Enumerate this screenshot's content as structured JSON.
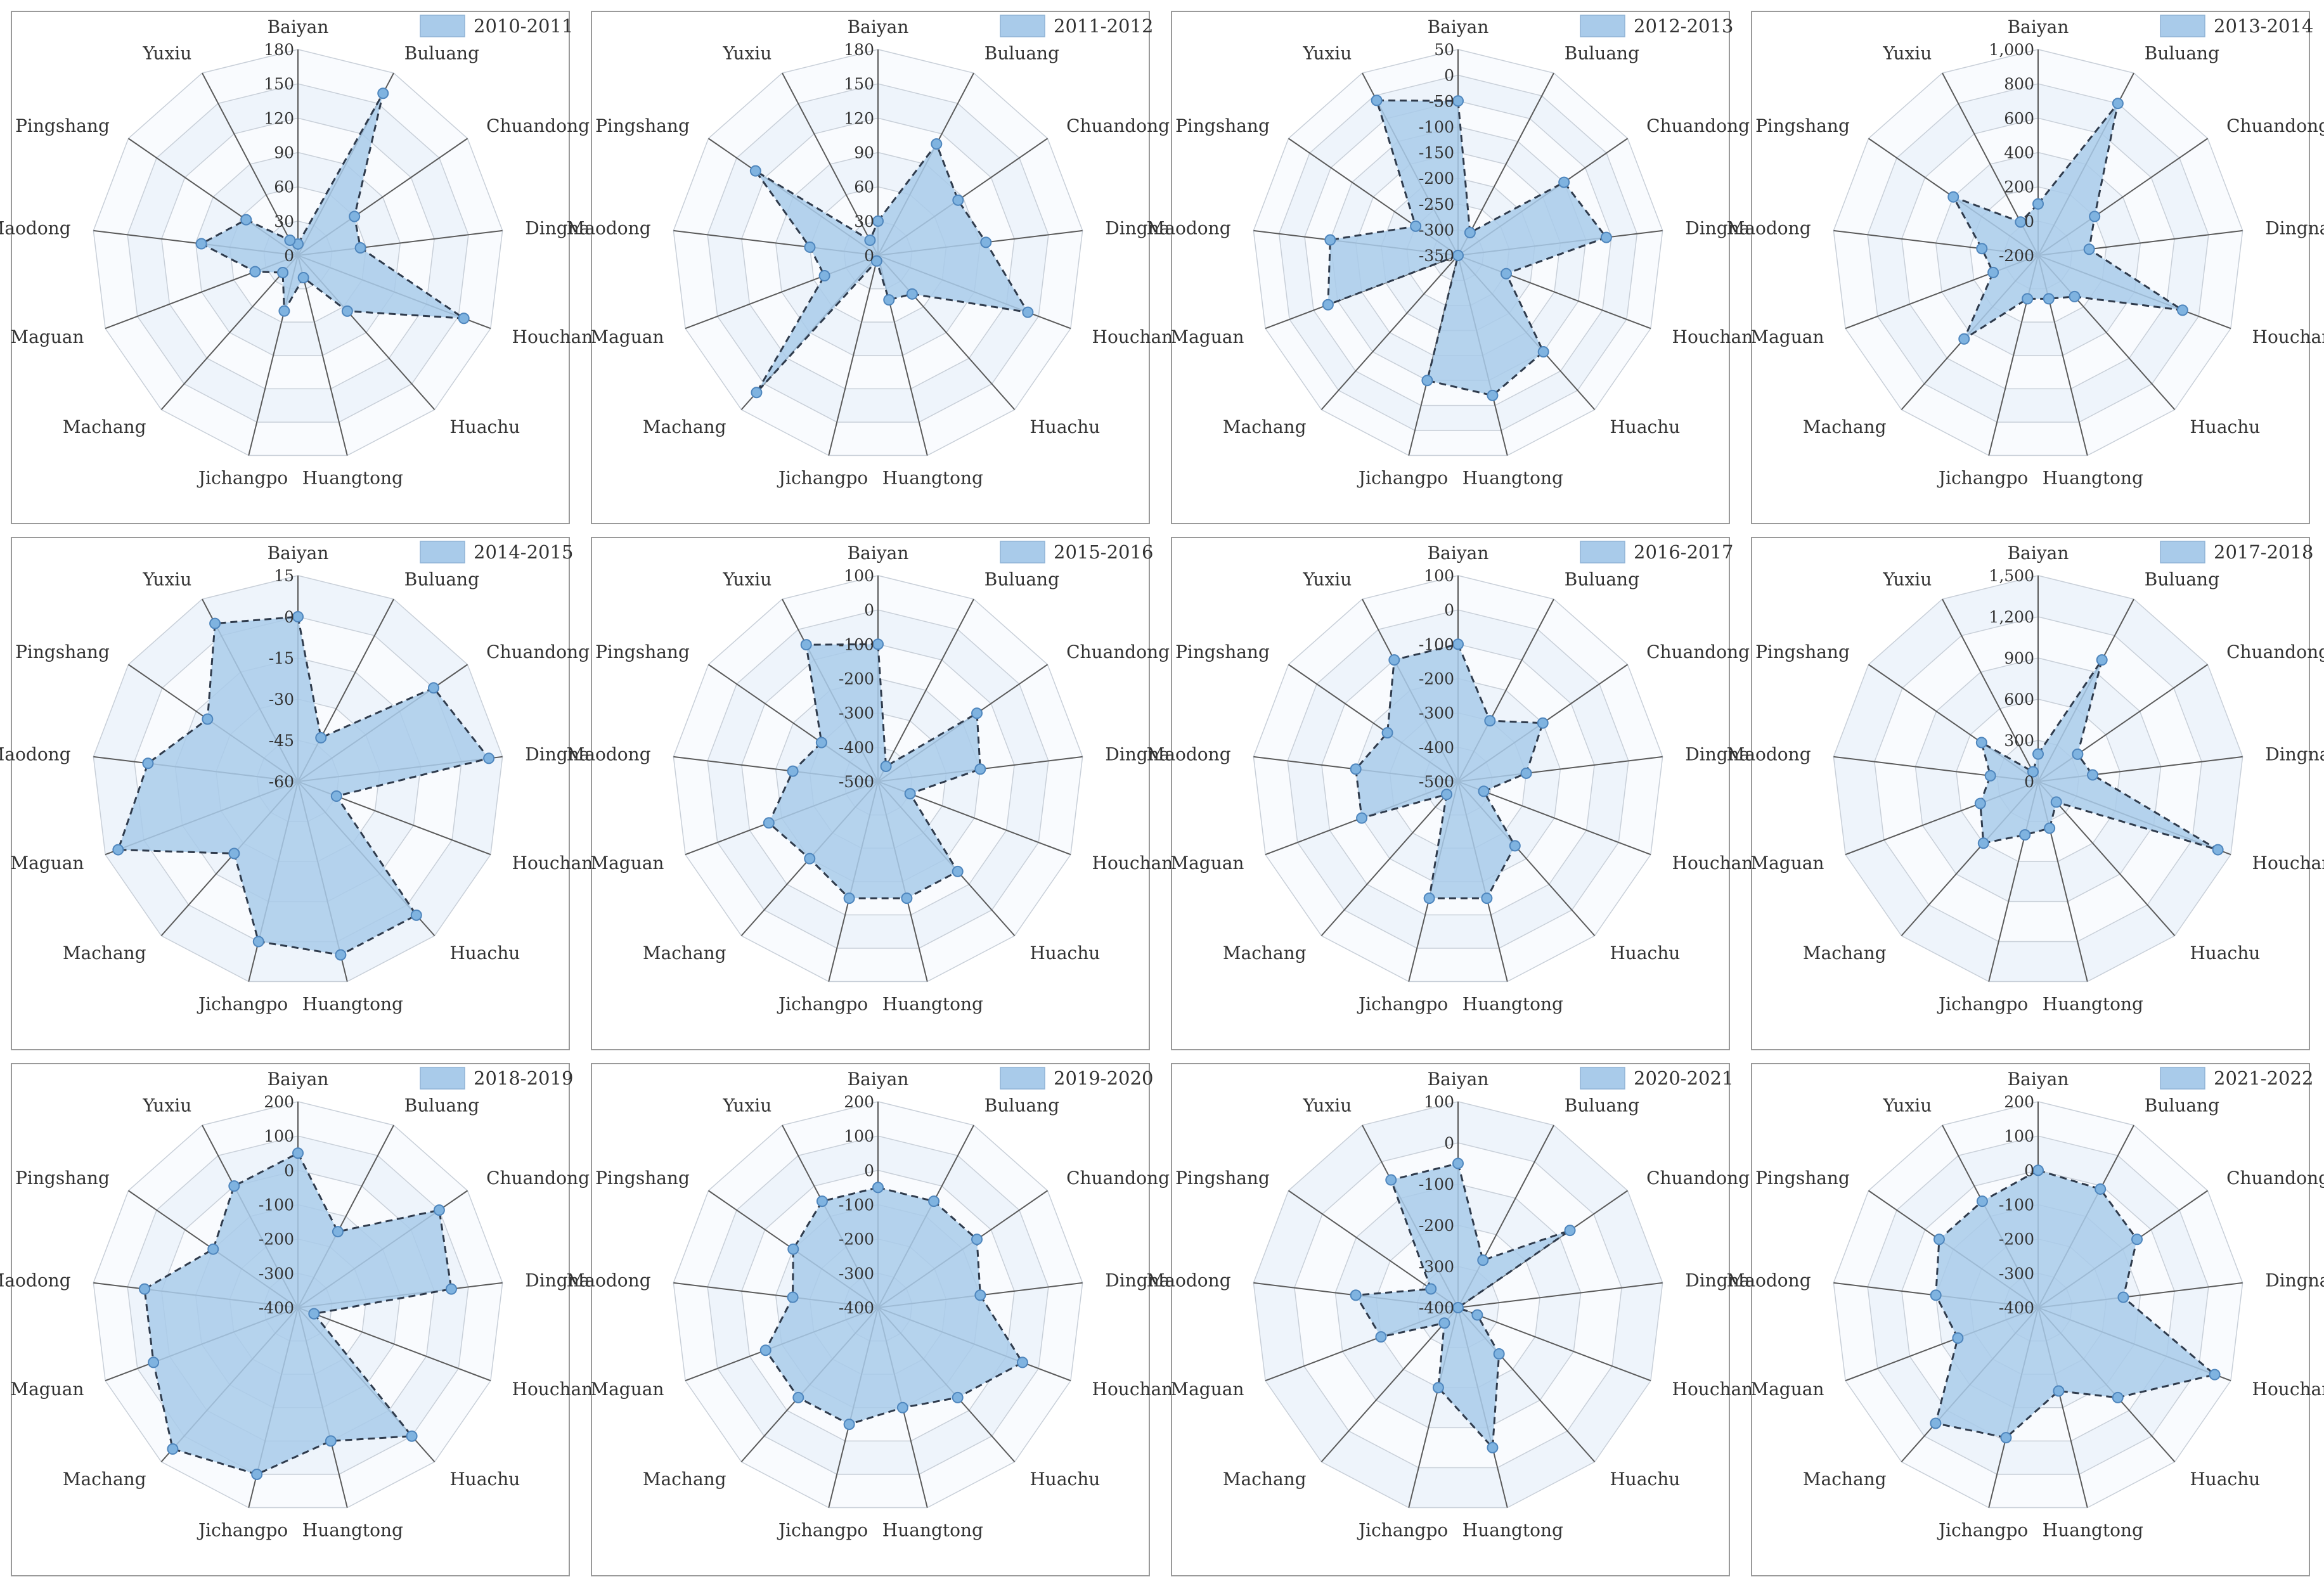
{
  "colors": {
    "fill": "#a9cbea",
    "stroke": "#2f3b4c",
    "point": "#7fb3e0",
    "ring_odd": "#eef4fb",
    "ring_even": "#f9fbfe",
    "grid": "#c8cfd8",
    "axis": "#5a5a5a",
    "frame": "#9a9a9a",
    "text": "#333333"
  },
  "chart_data": [
    {
      "type": "radar",
      "title": "2010-2011",
      "legend": "2010-2011",
      "categories": [
        "Baiyan",
        "Buluang",
        "Chuandong",
        "Dingnan",
        "Houchang",
        "Huachu",
        "Huangtong",
        "Jichangpo",
        "Machang",
        "Maguan",
        "Maodong",
        "Pingshang",
        "Yuxiu"
      ],
      "ticks": [
        "0",
        "30",
        "60",
        "90",
        "120",
        "150",
        "180"
      ],
      "rlim": [
        0,
        180
      ],
      "values": [
        10,
        160,
        60,
        55,
        155,
        65,
        20,
        50,
        20,
        40,
        85,
        55,
        15
      ]
    },
    {
      "type": "radar",
      "title": "2011-2012",
      "legend": "2011-2012",
      "categories": [
        "Baiyan",
        "Buluang",
        "Chuandong",
        "Dingnan",
        "Houchang",
        "Huachu",
        "Huangtong",
        "Jichangpo",
        "Machang",
        "Maguan",
        "Maodong",
        "Pingshang",
        "Yuxiu"
      ],
      "ticks": [
        "0",
        "30",
        "60",
        "90",
        "120",
        "150",
        "180"
      ],
      "rlim": [
        0,
        180
      ],
      "values": [
        30,
        110,
        85,
        95,
        140,
        45,
        40,
        5,
        160,
        50,
        60,
        130,
        15
      ]
    },
    {
      "type": "radar",
      "title": "2012-2013",
      "legend": "2012-2013",
      "categories": [
        "Baiyan",
        "Buluang",
        "Chuandong",
        "Dingnan",
        "Houchang",
        "Huachu",
        "Huangtong",
        "Jichangpo",
        "Machang",
        "Maguan",
        "Maodong",
        "Pingshang",
        "Yuxiu"
      ],
      "ticks": [
        "-350",
        "-300",
        "-250",
        "-200",
        "-150",
        "-100",
        "-50",
        "0",
        "50"
      ],
      "rlim": [
        -350,
        50
      ],
      "values": [
        -50,
        -300,
        -100,
        -60,
        -250,
        -100,
        -70,
        -100,
        -350,
        -80,
        -100,
        -250,
        -10
      ]
    },
    {
      "type": "radar",
      "title": "2013-2014",
      "legend": "2013-2014",
      "categories": [
        "Baiyan",
        "Buluang",
        "Chuandong",
        "Dingnan",
        "Houchang",
        "Huachu",
        "Huangtong",
        "Jichangpo",
        "Machang",
        "Maguan",
        "Maodong",
        "Pingshang",
        "Yuxiu"
      ],
      "ticks": [
        "-200",
        "0",
        "200",
        "400",
        "600",
        "800",
        "1,000"
      ],
      "rlim": [
        -200,
        1000
      ],
      "values": [
        100,
        800,
        200,
        100,
        700,
        120,
        60,
        60,
        450,
        80,
        130,
        400,
        20
      ]
    },
    {
      "type": "radar",
      "title": "2014-2015",
      "legend": "2014-2015",
      "categories": [
        "Baiyan",
        "Buluang",
        "Chuandong",
        "Dingnan",
        "Houchang",
        "Huachu",
        "Huangtong",
        "Jichangpo",
        "Machang",
        "Maguan",
        "Maodong",
        "Pingshang",
        "Yuxiu"
      ],
      "ticks": [
        "-60",
        "-45",
        "-30",
        "-15",
        "0",
        "15"
      ],
      "rlim": [
        -60,
        15
      ],
      "values": [
        0,
        -42,
        0,
        10,
        -45,
        5,
        5,
        0,
        -25,
        10,
        -5,
        -20,
        5
      ]
    },
    {
      "type": "radar",
      "title": "2015-2016",
      "legend": "2015-2016",
      "categories": [
        "Baiyan",
        "Buluang",
        "Chuandong",
        "Dingnan",
        "Houchang",
        "Huachu",
        "Huangtong",
        "Jichangpo",
        "Machang",
        "Maguan",
        "Maodong",
        "Pingshang",
        "Yuxiu"
      ],
      "ticks": [
        "-500",
        "-400",
        "-300",
        "-200",
        "-100",
        "0",
        "100"
      ],
      "rlim": [
        -500,
        100
      ],
      "values": [
        -100,
        -450,
        -150,
        -200,
        -400,
        -150,
        -150,
        -150,
        -200,
        -160,
        -250,
        -300,
        -50
      ]
    },
    {
      "type": "radar",
      "title": "2016-2017",
      "legend": "2016-2017",
      "categories": [
        "Baiyan",
        "Buluang",
        "Chuandong",
        "Dingnan",
        "Houchang",
        "Huachu",
        "Huangtong",
        "Jichangpo",
        "Machang",
        "Maguan",
        "Maodong",
        "Pingshang",
        "Yuxiu"
      ],
      "ticks": [
        "-500",
        "-400",
        "-300",
        "-200",
        "-100",
        "0",
        "100"
      ],
      "rlim": [
        -500,
        100
      ],
      "values": [
        -100,
        -300,
        -200,
        -300,
        -420,
        -250,
        -150,
        -150,
        -450,
        -200,
        -200,
        -250,
        -100
      ]
    },
    {
      "type": "radar",
      "title": "2017-2018",
      "legend": "2017-2018",
      "categories": [
        "Baiyan",
        "Buluang",
        "Chuandong",
        "Dingnan",
        "Houchang",
        "Huachu",
        "Huangtong",
        "Jichangpo",
        "Machang",
        "Maguan",
        "Maodong",
        "Pingshang",
        "Yuxiu"
      ],
      "ticks": [
        "0",
        "300",
        "600",
        "900",
        "1,200",
        "1,500"
      ],
      "rlim": [
        0,
        1500
      ],
      "values": [
        200,
        1000,
        350,
        400,
        1400,
        200,
        350,
        400,
        600,
        450,
        350,
        500,
        80
      ]
    },
    {
      "type": "radar",
      "title": "2018-2019",
      "legend": "2018-2019",
      "categories": [
        "Baiyan",
        "Buluang",
        "Chuandong",
        "Dingnan",
        "Houchang",
        "Huachu",
        "Huangtong",
        "Jichangpo",
        "Machang",
        "Maguan",
        "Maodong",
        "Pingshang",
        "Yuxiu"
      ],
      "ticks": [
        "-400",
        "-300",
        "-200",
        "-100",
        "0",
        "100",
        "200"
      ],
      "rlim": [
        -400,
        200
      ],
      "values": [
        50,
        -150,
        100,
        50,
        -350,
        100,
        0,
        100,
        150,
        50,
        50,
        -100,
        0
      ]
    },
    {
      "type": "radar",
      "title": "2019-2020",
      "legend": "2019-2020",
      "categories": [
        "Baiyan",
        "Buluang",
        "Chuandong",
        "Dingnan",
        "Houchang",
        "Huachu",
        "Huangtong",
        "Jichangpo",
        "Machang",
        "Maguan",
        "Maodong",
        "Pingshang",
        "Yuxiu"
      ],
      "ticks": [
        "-400",
        "-300",
        "-200",
        "-100",
        "0",
        "100",
        "200"
      ],
      "rlim": [
        -400,
        200
      ],
      "values": [
        -50,
        -50,
        -50,
        -100,
        50,
        -50,
        -100,
        -50,
        -50,
        -50,
        -150,
        -100,
        -50
      ]
    },
    {
      "type": "radar",
      "title": "2020-2021",
      "legend": "2020-2021",
      "categories": [
        "Baiyan",
        "Buluang",
        "Chuandong",
        "Dingnan",
        "Houchang",
        "Huachu",
        "Huangtong",
        "Jichangpo",
        "Machang",
        "Maguan",
        "Maodong",
        "Pingshang",
        "Yuxiu"
      ],
      "ticks": [
        "-400",
        "-300",
        "-200",
        "-100",
        "0",
        "100"
      ],
      "rlim": [
        -400,
        100
      ],
      "values": [
        -50,
        -270,
        -70,
        -400,
        -350,
        -250,
        -50,
        -200,
        -350,
        -200,
        -150,
        -320,
        -50
      ]
    },
    {
      "type": "radar",
      "title": "2021-2022",
      "legend": "2021-2022",
      "categories": [
        "Baiyan",
        "Buluang",
        "Chuandong",
        "Dingnan",
        "Houchang",
        "Huachu",
        "Huangtong",
        "Jichangpo",
        "Machang",
        "Maguan",
        "Maodong",
        "Pingshang",
        "Yuxiu"
      ],
      "ticks": [
        "-400",
        "-300",
        "-200",
        "-100",
        "0",
        "100",
        "200"
      ],
      "rlim": [
        -400,
        200
      ],
      "values": [
        0,
        -10,
        -50,
        -150,
        150,
        -50,
        -150,
        -10,
        50,
        -150,
        -100,
        -50,
        -50
      ]
    }
  ]
}
